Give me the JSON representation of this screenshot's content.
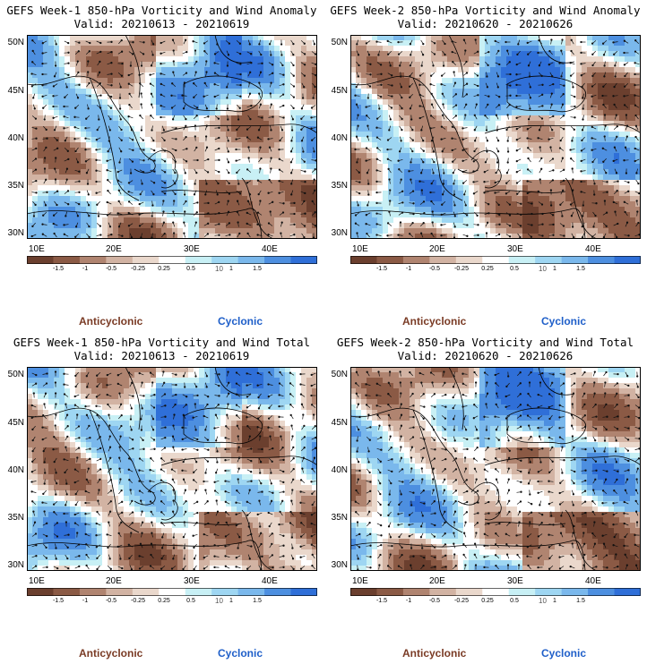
{
  "panels": [
    {
      "title": "GEFS Week-1 850-hPa Vorticity and Wind Anomaly",
      "valid": "Valid: 20210613 - 20210619"
    },
    {
      "title": "GEFS Week-2 850-hPa Vorticity and Wind Anomaly",
      "valid": "Valid: 20210620 - 20210626"
    },
    {
      "title": "GEFS Week-1 850-hPa Vorticity and Wind Total",
      "valid": "Valid: 20210613 - 20210619"
    },
    {
      "title": "GEFS Week-2 850-hPa Vorticity and Wind Total",
      "valid": "Valid: 20210620 - 20210626"
    }
  ],
  "lat_labels": [
    "50N",
    "45N",
    "40N",
    "35N",
    "30N"
  ],
  "lon_labels": [
    "10E",
    "20E",
    "30E",
    "40E"
  ],
  "colorbar": {
    "labels": [
      "-1.5",
      "-1",
      "-0.5",
      "-0.25",
      "0.25",
      "0.5",
      "1",
      "1.5"
    ],
    "colors": [
      "#6b3f2e",
      "#8b5a45",
      "#b08470",
      "#d2b3a3",
      "#ead8cc",
      "#ffffff",
      "#c8f0f5",
      "#9ed6f2",
      "#7ab8ec",
      "#4d8fe0",
      "#2f6fd8"
    ],
    "unit": "10"
  },
  "legend": {
    "anticyclonic": "Anticyclonic",
    "cyclonic": "Cyclonic"
  }
}
